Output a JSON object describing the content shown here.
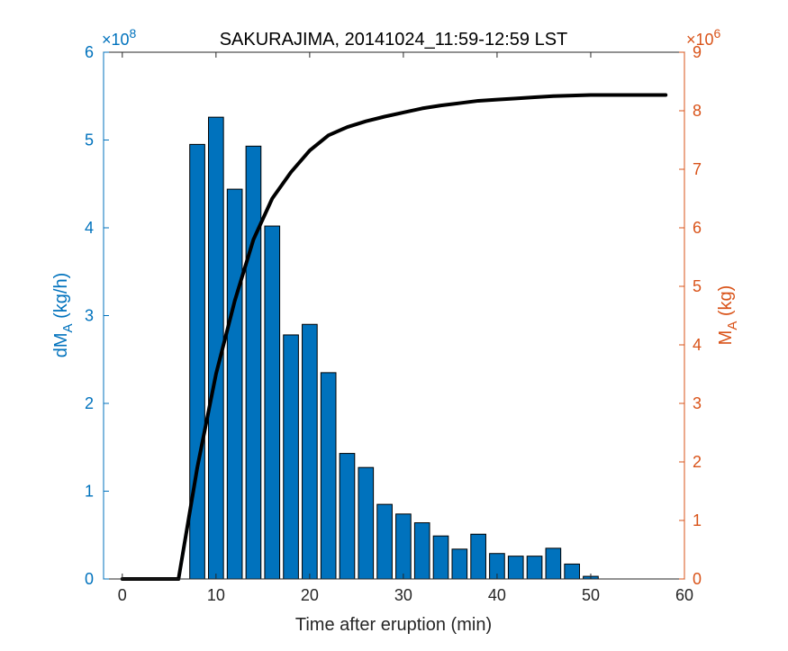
{
  "chart_data": {
    "type": "bar",
    "title": "SAKURAJIMA, 20141024_11:59-12:59 LST",
    "xlabel": "Time after eruption (min)",
    "xlim": [
      -2,
      60
    ],
    "xticks": [
      0,
      10,
      20,
      30,
      40,
      50,
      60
    ],
    "left_axis": {
      "label_main": "dM",
      "label_sub": "A",
      "label_unit": " (kg/h)",
      "exponent": "×10",
      "exponent_power": "8",
      "ylim": [
        0,
        6
      ],
      "ticks": [
        0,
        1,
        2,
        3,
        4,
        5,
        6
      ],
      "color": "#0072BD"
    },
    "right_axis": {
      "label_main": "M",
      "label_sub": "A",
      "label_unit": " (kg)",
      "exponent": "×10",
      "exponent_power": "6",
      "ylim": [
        0,
        9
      ],
      "ticks": [
        0,
        1,
        2,
        3,
        4,
        5,
        6,
        7,
        8,
        9
      ],
      "color": "#D95319"
    },
    "series": [
      {
        "type": "bar",
        "axis": "left",
        "color": "#0072BD",
        "x": [
          8,
          10,
          12,
          14,
          16,
          18,
          20,
          22,
          24,
          26,
          28,
          30,
          32,
          34,
          36,
          38,
          40,
          42,
          44,
          46,
          48,
          50
        ],
        "values": [
          4.95,
          5.26,
          4.44,
          4.93,
          4.02,
          2.78,
          2.9,
          2.35,
          1.43,
          1.27,
          0.85,
          0.74,
          0.64,
          0.49,
          0.34,
          0.51,
          0.29,
          0.26,
          0.26,
          0.35,
          0.17,
          0.03
        ]
      },
      {
        "type": "line",
        "axis": "right",
        "color": "#000000",
        "x": [
          0,
          2,
          4,
          6,
          7,
          8,
          10,
          12,
          14,
          16,
          18,
          20,
          22,
          24,
          26,
          28,
          30,
          32,
          34,
          36,
          38,
          40,
          42,
          44,
          46,
          48,
          50,
          52,
          54,
          56,
          58
        ],
        "values": [
          0,
          0,
          0,
          0,
          0.95,
          1.9,
          3.5,
          4.75,
          5.8,
          6.5,
          6.95,
          7.32,
          7.58,
          7.72,
          7.82,
          7.9,
          7.97,
          8.04,
          8.09,
          8.13,
          8.17,
          8.19,
          8.21,
          8.23,
          8.25,
          8.26,
          8.27,
          8.27,
          8.27,
          8.27,
          8.27
        ]
      }
    ]
  }
}
